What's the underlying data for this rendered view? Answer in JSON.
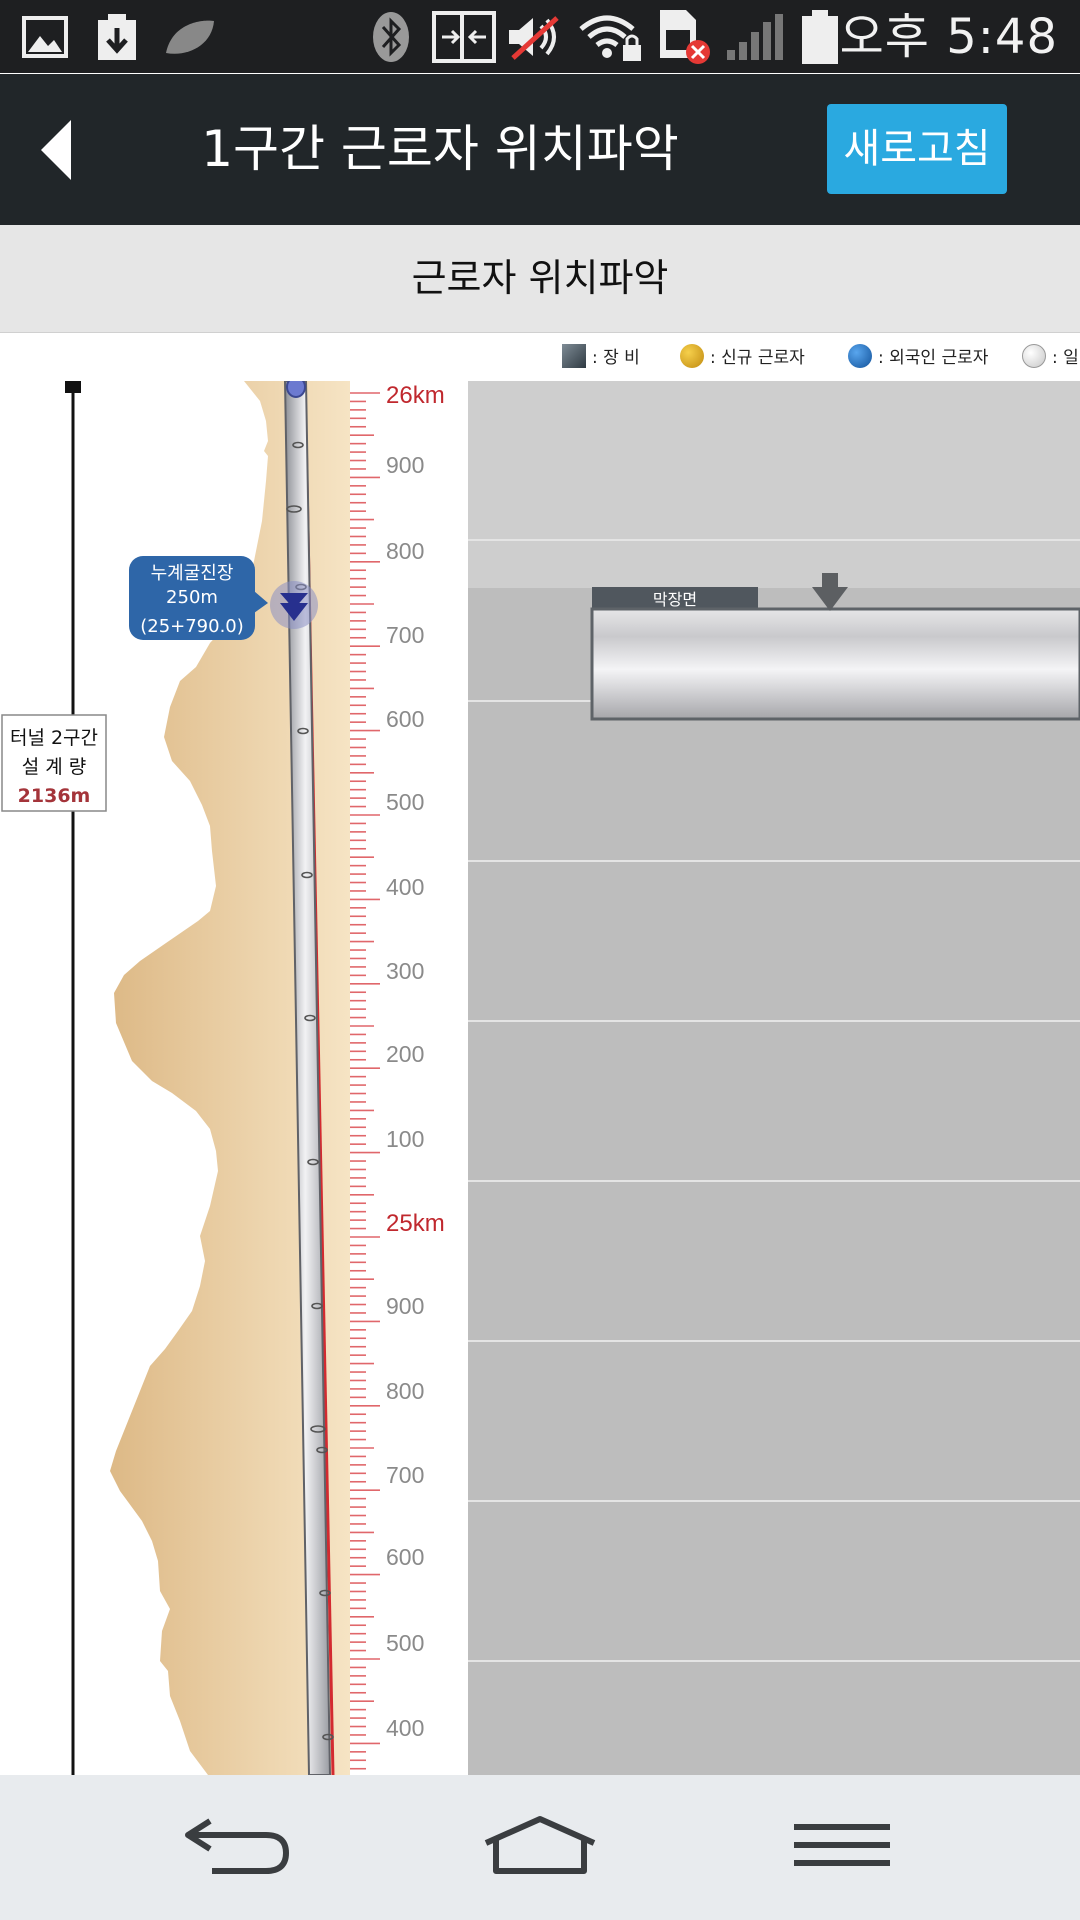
{
  "status_bar": {
    "time": "오후 5:48",
    "icons": [
      "gallery-icon",
      "download-icon",
      "leaf-icon",
      "bluetooth-icon",
      "nfc-icon",
      "mute-icon",
      "wifi-lock-icon",
      "sim-error-icon",
      "signal-icon",
      "battery-icon"
    ]
  },
  "header": {
    "title": "1구간 근로자 위치파악",
    "refresh_label": "새로고침",
    "back_icon": "back-arrow-icon"
  },
  "subheader": {
    "title": "근로자 위치파악"
  },
  "legend": {
    "items": [
      {
        "label": ": 장 비",
        "color": "#4a5a66"
      },
      {
        "label": ": 신규 근로자",
        "color": "#e0a821"
      },
      {
        "label": ": 외국인 근로자",
        "color": "#1f6fc0"
      },
      {
        "label": ": 일",
        "color": "#e8e8e8"
      }
    ]
  },
  "tunnel": {
    "design_label_line1": "터널 2구간",
    "design_label_line2": "설 계 량",
    "design_length": "2136m",
    "progress_label_line1": "누계굴진장",
    "progress_label_line2": "250m",
    "progress_label_line3": "(25+790.0)",
    "face_label": "막장면",
    "accent_color": "#c0282e",
    "scale_labels": [
      "26km",
      "900",
      "800",
      "700",
      "600",
      "500",
      "400",
      "300",
      "200",
      "100",
      "25km",
      "900",
      "800",
      "700",
      "600",
      "500",
      "400"
    ]
  },
  "nav_bar": {
    "icons": [
      "back-nav-icon",
      "home-nav-icon",
      "menu-nav-icon"
    ]
  }
}
